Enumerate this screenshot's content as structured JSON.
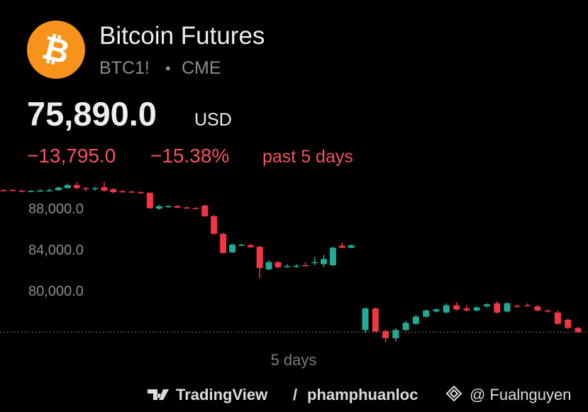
{
  "header": {
    "logo_symbol": "₿",
    "title": "Bitcoin Futures",
    "symbol": "BTC1!",
    "separator": "•",
    "exchange": "CME",
    "price": "75,890.0",
    "currency": "USD",
    "change": "−13,795.0",
    "change_percent": "−15.38%",
    "period": "past 5 days"
  },
  "chart_data": {
    "type": "candlestick",
    "x_label": "5 days",
    "ylim": [
      74400,
      91300
    ],
    "yticks": [
      {
        "value": 80000,
        "label": "80,000.0"
      },
      {
        "value": 84000,
        "label": "84,000.0"
      },
      {
        "value": 88000,
        "label": "88,000.0"
      }
    ],
    "last_value": 75890,
    "up_color": "#22ab94",
    "down_color": "#f23645",
    "open": [
      89700,
      89720,
      89650,
      89600,
      89620,
      89660,
      89700,
      89900,
      90200,
      89900,
      89880,
      90000,
      89800,
      89600,
      89560,
      89500,
      89450,
      87900,
      88100,
      88150,
      88020,
      87950,
      88200,
      87170,
      85450,
      83650,
      84380,
      84350,
      84200,
      82000,
      82700,
      82280,
      82300,
      82400,
      82600,
      82500,
      82400,
      84300,
      84100,
      76100,
      78200,
      76000,
      75300,
      76100,
      76700,
      77400,
      77900,
      77800,
      78500,
      78200,
      78000,
      78400,
      78700,
      77900,
      78450,
      78520,
      78400,
      78000,
      77800,
      77100,
      76300
    ],
    "high": [
      89800,
      89800,
      89750,
      89700,
      89800,
      89850,
      90050,
      90350,
      90500,
      90000,
      90050,
      90500,
      89900,
      89700,
      89650,
      89600,
      89500,
      88250,
      88250,
      88250,
      88100,
      88050,
      88300,
      87300,
      85550,
      84500,
      84500,
      84500,
      84300,
      82900,
      82800,
      82500,
      82500,
      82700,
      83200,
      83400,
      84200,
      84600,
      84400,
      78300,
      78300,
      76150,
      76300,
      77000,
      77600,
      78100,
      78200,
      78700,
      78800,
      78500,
      78400,
      78700,
      78900,
      78800,
      78600,
      78700,
      78550,
      78100,
      78000,
      77200,
      76400
    ],
    "low": [
      89600,
      89600,
      89500,
      89500,
      89550,
      89550,
      89650,
      89850,
      89800,
      89600,
      89650,
      89550,
      89400,
      89450,
      89450,
      89350,
      87900,
      87800,
      88000,
      87950,
      87900,
      87850,
      87100,
      85400,
      83550,
      83600,
      84250,
      84100,
      81150,
      81900,
      82100,
      82150,
      82150,
      82300,
      82400,
      82200,
      82300,
      84050,
      84050,
      75800,
      75900,
      74900,
      75000,
      76000,
      76600,
      77300,
      77800,
      77700,
      78000,
      77900,
      77900,
      78300,
      77700,
      77800,
      78300,
      78400,
      77900,
      77800,
      76600,
      76200,
      75800
    ],
    "close": [
      89680,
      89650,
      89600,
      89620,
      89660,
      89700,
      89950,
      90200,
      89900,
      89880,
      89900,
      89650,
      89500,
      89560,
      89500,
      89400,
      87950,
      88150,
      88150,
      88000,
      87950,
      87900,
      87170,
      85450,
      83590,
      84400,
      84400,
      84150,
      82140,
      82700,
      82200,
      82300,
      82350,
      82300,
      82700,
      83000,
      84100,
      84100,
      84350,
      78200,
      75950,
      75300,
      76100,
      76800,
      77400,
      78000,
      78100,
      78500,
      78100,
      78000,
      78300,
      78600,
      77800,
      78700,
      78400,
      78500,
      78000,
      77900,
      76700,
      76300,
      75890
    ]
  },
  "footer": {
    "brand": "TradingView",
    "slash": "/",
    "user": "phamphuanloc",
    "handle": "@ Fualnguyen"
  }
}
